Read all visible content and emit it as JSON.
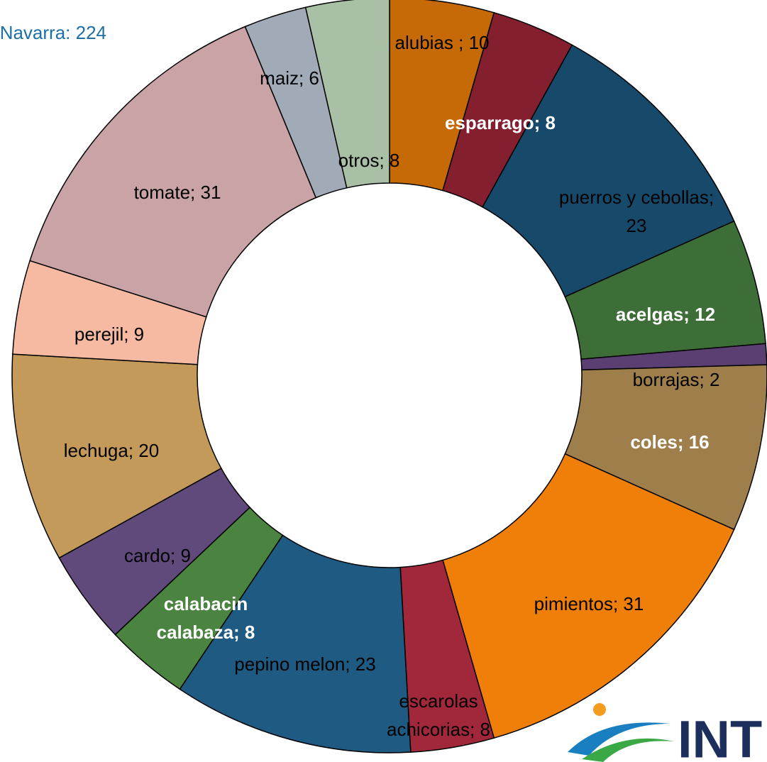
{
  "chart_data": {
    "type": "donut",
    "title": "Navarra: 224",
    "categories": [
      "alubias",
      "esparrago",
      "puerros y cebollas",
      "acelgas",
      "borrajas",
      "coles",
      "pimientos",
      "escarolas achicorias",
      "pepino melon",
      "calabacin calabaza",
      "cardo",
      "lechuga",
      "perejil",
      "tomate",
      "maiz",
      "otros"
    ],
    "values": [
      10,
      8,
      23,
      12,
      2,
      16,
      31,
      8,
      23,
      8,
      9,
      20,
      9,
      31,
      6,
      8
    ],
    "value_labels": [
      "alubias ; 10",
      "esparrago; 8",
      "puerros y cebollas;\n23",
      "acelgas; 12",
      "borrajas; 2",
      "coles; 16",
      "pimientos; 31",
      "escarolas\nachicorias; 8",
      "pepino melon; 23",
      "calabacin\ncalabaza; 8",
      "cardo; 9",
      "lechuga; 20",
      "perejil; 9",
      "tomate; 31",
      "maiz; 6",
      "otros; 8"
    ],
    "colors": [
      "#c56a06",
      "#841f2f",
      "#174a6a",
      "#3e6e37",
      "#5b3f72",
      "#9e7f4c",
      "#f07f09",
      "#a0283a",
      "#1f5a82",
      "#4a8440",
      "#604a7b",
      "#c49a5a",
      "#f6b9a1",
      "#c9a3a5",
      "#a1abb8",
      "#a9bfa6"
    ],
    "logo": "INT"
  }
}
